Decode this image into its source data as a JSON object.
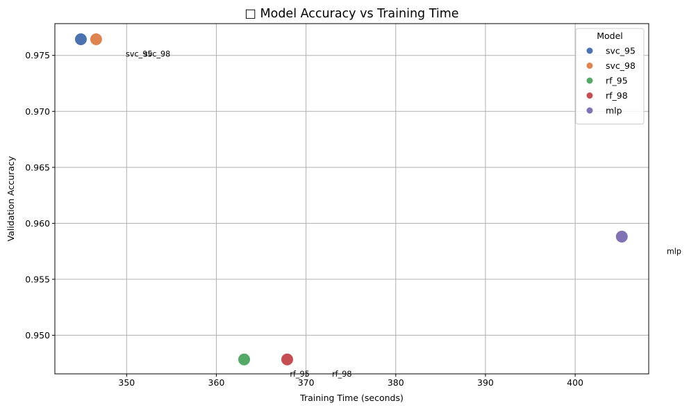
{
  "chart_data": {
    "type": "scatter",
    "title": "□ Model Accuracy vs Training Time",
    "xlabel": "Training Time (seconds)",
    "ylabel": "Validation Accuracy",
    "xlim": [
      342,
      408.2
    ],
    "ylim": [
      0.94655,
      0.97784
    ],
    "xticks": [
      350,
      360,
      370,
      380,
      390,
      400
    ],
    "xtick_labels": [
      "350",
      "360",
      "370",
      "380",
      "390",
      "400"
    ],
    "yticks": [
      0.95,
      0.955,
      0.96,
      0.965,
      0.97,
      0.975
    ],
    "ytick_labels": [
      "0.950",
      "0.955",
      "0.960",
      "0.965",
      "0.970",
      "0.975"
    ],
    "grid": true,
    "legend": {
      "title": "Model",
      "placement": "top-right"
    },
    "series": [
      {
        "name": "svc_95",
        "color": "#4c72b0",
        "points": [
          {
            "x": 344.9,
            "y": 0.97644
          }
        ]
      },
      {
        "name": "svc_98",
        "color": "#dd8452",
        "points": [
          {
            "x": 346.6,
            "y": 0.97644
          }
        ]
      },
      {
        "name": "rf_95",
        "color": "#55a868",
        "points": [
          {
            "x": 363.1,
            "y": 0.94784
          }
        ]
      },
      {
        "name": "rf_98",
        "color": "#c44e52",
        "points": [
          {
            "x": 367.9,
            "y": 0.94784
          }
        ]
      },
      {
        "name": "mlp",
        "color": "#8172b3",
        "points": [
          {
            "x": 405.2,
            "y": 0.95881
          }
        ]
      }
    ],
    "annotations": [
      {
        "text": "svc_95",
        "x": 349.9,
        "y": 0.97514
      },
      {
        "text": "svc_98",
        "x": 351.9,
        "y": 0.97514
      },
      {
        "text": "rf_95",
        "x": 368.2,
        "y": 0.94654
      },
      {
        "text": "rf_98",
        "x": 372.9,
        "y": 0.94654
      },
      {
        "text": "mlp",
        "x": 410.2,
        "y": 0.95751
      }
    ]
  }
}
